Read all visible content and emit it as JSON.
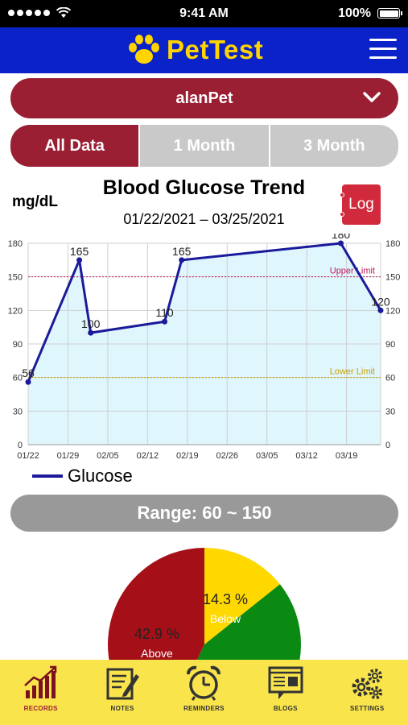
{
  "status_bar": {
    "time": "9:41 AM",
    "battery": "100%"
  },
  "app": {
    "name": "PetTest"
  },
  "pet_selector": {
    "value": "alanPet"
  },
  "tabs": [
    {
      "label": "All Data",
      "active": true
    },
    {
      "label": "1 Month",
      "active": false
    },
    {
      "label": "3 Month",
      "active": false
    }
  ],
  "chart_header": {
    "unit": "mg/dL",
    "title": "Blood Glucose Trend",
    "date_range": "01/22/2021 – 03/25/2021",
    "log_label": "Log"
  },
  "chart_data": {
    "type": "line",
    "title": "Blood Glucose Trend",
    "ylabel": "mg/dL",
    "xlabel": "",
    "ylim": [
      0,
      180
    ],
    "y_ticks": [
      0,
      30,
      60,
      90,
      120,
      150,
      180
    ],
    "x_tick_labels": [
      "01/22",
      "01/29",
      "02/05",
      "02/12",
      "02/19",
      "02/26",
      "03/05",
      "03/12",
      "03/19"
    ],
    "x_tick_days": [
      0,
      7,
      14,
      21,
      28,
      35,
      42,
      49,
      56
    ],
    "x_range_days": [
      0,
      62
    ],
    "grid": true,
    "legend": "bottom-left",
    "series": [
      {
        "name": "Glucose",
        "color": "#1a1a9a",
        "fill": "#dff6fd",
        "points": [
          {
            "day": 0,
            "value": 56
          },
          {
            "day": 9,
            "value": 165
          },
          {
            "day": 11,
            "value": 100
          },
          {
            "day": 24,
            "value": 110
          },
          {
            "day": 27,
            "value": 165
          },
          {
            "day": 55,
            "value": 180
          },
          {
            "day": 62,
            "value": 120
          }
        ]
      }
    ],
    "reference_lines": [
      {
        "label": "Upper Limit",
        "value": 150,
        "color": "#c2185b"
      },
      {
        "label": "Lower Limit",
        "value": 60,
        "color": "#c9a200"
      }
    ]
  },
  "range": {
    "label": "Range: 60 ~ 150"
  },
  "pie_data": {
    "type": "pie",
    "slices": [
      {
        "label": "Above",
        "percent_label": "42.9 %",
        "value": 42.9,
        "color": "#a51018"
      },
      {
        "label": "Below",
        "percent_label": "14.3 %",
        "value": 14.3,
        "color": "#ffd800"
      },
      {
        "label": "",
        "percent_label": "",
        "value": 42.8,
        "color": "#0a8a12"
      }
    ]
  },
  "bottom_nav": [
    {
      "label": "RECORDS",
      "icon": "records-chart-icon",
      "active": true
    },
    {
      "label": "NOTES",
      "icon": "notes-icon",
      "active": false
    },
    {
      "label": "REMINDERS",
      "icon": "alarm-clock-icon",
      "active": false
    },
    {
      "label": "BLOGS",
      "icon": "blogs-icon",
      "active": false
    },
    {
      "label": "SETTINGS",
      "icon": "gears-icon",
      "active": false
    }
  ]
}
